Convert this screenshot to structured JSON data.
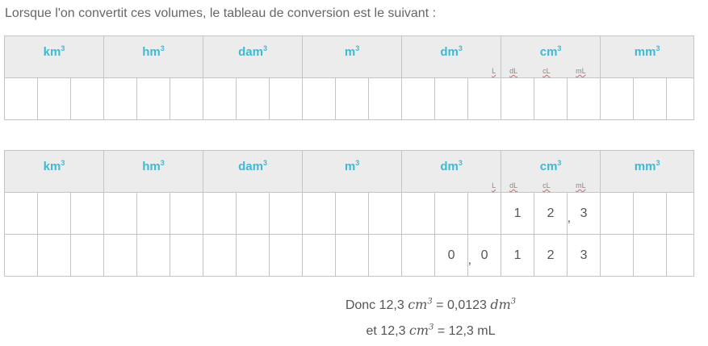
{
  "intro": "Lorsque l'on convertit ces volumes, le tableau de conversion est le suivant :",
  "units": [
    "km",
    "hm",
    "dam",
    "m",
    "dm",
    "cm",
    "mm"
  ],
  "unit_exponent": "3",
  "subunits": {
    "L": "L",
    "dL": "dL",
    "cL": "cL",
    "mL": "mL"
  },
  "table2": {
    "row1": {
      "c16": "1",
      "c17": "2",
      "c18": "3",
      "comma": ","
    },
    "row2": {
      "c14": "0",
      "c15": "0",
      "c16": "1",
      "c17": "2",
      "c18": "3",
      "comma": ","
    }
  },
  "result1": {
    "prefix": "Donc 12,3 ",
    "var1": "cm",
    "exp": "3",
    "mid": " = 0,0123 ",
    "var2": "dm"
  },
  "result2": {
    "prefix": "et 12,3 ",
    "var1": "cm",
    "exp": "3",
    "suffix": " = 12,3 mL"
  }
}
